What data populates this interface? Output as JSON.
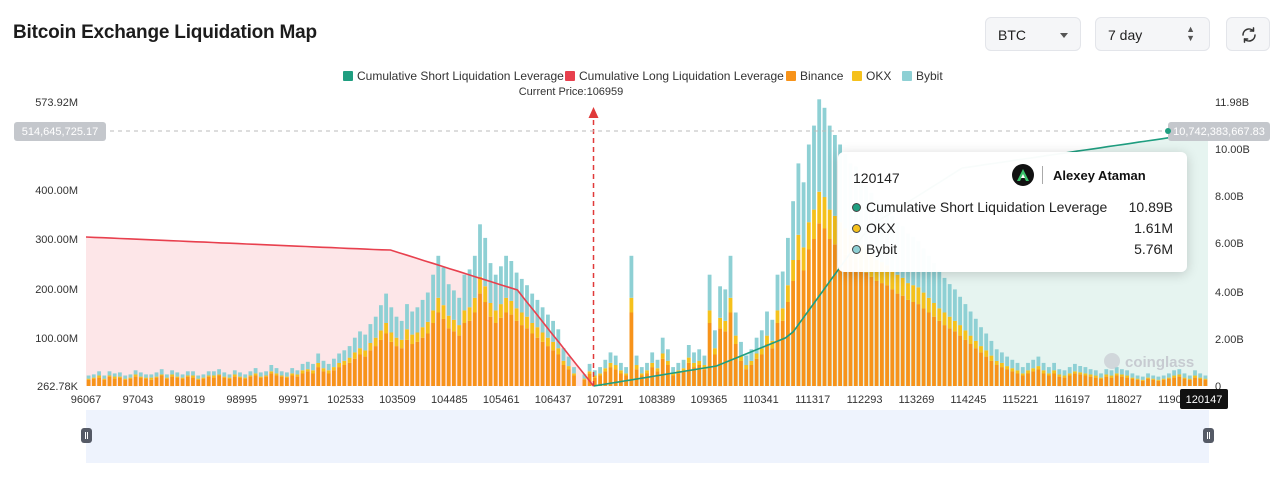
{
  "header": {
    "title": "Bitcoin Exchange Liquidation Map"
  },
  "controls": {
    "coin_select": {
      "value": "BTC"
    },
    "range_select": {
      "value": "7 day"
    },
    "refresh_icon": "refresh-icon"
  },
  "colors": {
    "short_cumulative": "#1f9e80",
    "long_cumulative": "#e8404e",
    "binance": "#f7931a",
    "okx": "#f5c11c",
    "bybit": "#8ed0d4",
    "long_area": "#fde3e6",
    "short_area": "#e3f3ee"
  },
  "chart_data": {
    "type": "bar",
    "legend": [
      "Cumulative Short Liquidation Leverage",
      "Cumulative Long Liquidation Leverage",
      "Binance",
      "OKX",
      "Bybit"
    ],
    "legend_position": "top-center",
    "current_price_label": "Current Price:106959",
    "current_price": 106959,
    "x_ticks": [
      "96067",
      "97043",
      "98019",
      "98995",
      "99971",
      "102533",
      "103509",
      "104485",
      "105461",
      "106437",
      "107291",
      "108389",
      "109365",
      "110341",
      "111317",
      "112293",
      "113269",
      "114245",
      "115221",
      "116197",
      "118027",
      "119003",
      "120147"
    ],
    "x_range": [
      96067,
      120147
    ],
    "left_axis": {
      "ticks": [
        "573.92M",
        "400.00M",
        "300.00M",
        "200.00M",
        "100.00M",
        "262.78K"
      ],
      "range": [
        262780,
        573920000
      ]
    },
    "right_axis": {
      "ticks": [
        "11.98B",
        "10.00B",
        "8.00B",
        "6.00B",
        "4.00B",
        "2.00B",
        "0"
      ],
      "range": [
        0,
        11980000000
      ]
    },
    "hover": {
      "left_value_label": "514,645,725.17",
      "left_value": 514645725.17,
      "right_value_label": "10,742,383,667.83",
      "right_value": 10742383667.83,
      "x_label": "120147"
    },
    "series": [
      {
        "name": "Binance",
        "values": [
          6,
          7,
          8,
          6,
          9,
          7,
          8,
          6,
          7,
          9,
          8,
          7,
          6,
          8,
          10,
          7,
          9,
          8,
          7,
          9,
          8,
          6,
          7,
          9,
          8,
          10,
          8,
          7,
          9,
          8,
          7,
          9,
          10,
          8,
          9,
          12,
          10,
          9,
          8,
          10,
          9,
          12,
          14,
          12,
          18,
          14,
          12,
          15,
          18,
          20,
          22,
          26,
          30,
          28,
          34,
          38,
          44,
          50,
          42,
          38,
          36,
          44,
          40,
          42,
          46,
          50,
          60,
          70,
          64,
          55,
          52,
          48,
          60,
          62,
          70,
          88,
          80,
          66,
          60,
          65,
          70,
          68,
          62,
          58,
          55,
          50,
          46,
          42,
          38,
          34,
          30,
          20,
          16,
          10,
          0,
          6,
          12,
          8,
          10,
          14,
          18,
          16,
          12,
          10,
          70,
          16,
          10,
          12,
          18,
          14,
          26,
          20,
          10,
          12,
          14,
          22,
          18,
          20,
          16,
          60,
          30,
          55,
          52,
          70,
          40,
          24,
          16,
          20,
          26,
          30,
          40,
          36,
          60,
          62,
          80,
          100,
          120,
          110,
          130,
          140,
          155,
          150,
          140,
          135,
          130,
          125,
          120,
          118,
          112,
          108,
          104,
          100,
          98,
          96,
          92,
          88,
          86,
          82,
          80,
          78,
          74,
          70,
          66,
          62,
          58,
          55,
          52,
          48,
          44,
          40,
          36,
          32,
          28,
          24,
          20,
          18,
          16,
          14,
          12,
          10,
          12,
          14,
          16,
          12,
          10,
          12,
          9,
          8,
          10,
          12,
          11,
          10,
          9,
          8,
          7,
          9,
          8,
          10,
          9,
          8,
          7,
          6,
          5,
          7,
          6,
          5,
          6,
          7,
          8,
          9,
          7,
          6,
          8,
          7,
          6
        ]
      },
      {
        "name": "OKX",
        "values": [
          1,
          1,
          2,
          1,
          1,
          2,
          1,
          1,
          1,
          2,
          1,
          1,
          2,
          1,
          1,
          1,
          2,
          1,
          1,
          1,
          2,
          1,
          1,
          1,
          2,
          1,
          1,
          1,
          2,
          1,
          1,
          1,
          2,
          1,
          1,
          2,
          2,
          1,
          1,
          2,
          2,
          3,
          2,
          3,
          4,
          3,
          3,
          3,
          4,
          4,
          5,
          6,
          6,
          6,
          7,
          8,
          9,
          10,
          9,
          8,
          8,
          10,
          9,
          9,
          10,
          11,
          12,
          14,
          13,
          12,
          11,
          10,
          12,
          13,
          14,
          16,
          15,
          13,
          12,
          13,
          14,
          13,
          12,
          12,
          11,
          10,
          10,
          9,
          8,
          8,
          6,
          4,
          3,
          2,
          0,
          1,
          2,
          2,
          2,
          3,
          4,
          4,
          3,
          2,
          14,
          4,
          2,
          3,
          4,
          3,
          5,
          4,
          2,
          3,
          3,
          5,
          4,
          4,
          4,
          12,
          6,
          10,
          10,
          14,
          8,
          5,
          4,
          4,
          5,
          6,
          8,
          7,
          12,
          12,
          16,
          20,
          24,
          22,
          26,
          28,
          30,
          30,
          28,
          27,
          26,
          25,
          24,
          24,
          22,
          22,
          21,
          20,
          20,
          19,
          18,
          18,
          17,
          16,
          16,
          16,
          15,
          14,
          13,
          12,
          12,
          11,
          10,
          10,
          9,
          8,
          7,
          6,
          6,
          5,
          4,
          4,
          3,
          3,
          3,
          2,
          3,
          3,
          3,
          3,
          2,
          3,
          2,
          2,
          2,
          2,
          2,
          2,
          2,
          2,
          1,
          2,
          2,
          2,
          2,
          2,
          1,
          1,
          1,
          1,
          1,
          1,
          1,
          1,
          2,
          2,
          1,
          1,
          2,
          1,
          1
        ]
      },
      {
        "name": "Bybit",
        "values": [
          3,
          3,
          4,
          3,
          4,
          3,
          4,
          3,
          3,
          4,
          4,
          3,
          3,
          4,
          5,
          3,
          4,
          4,
          3,
          4,
          4,
          3,
          3,
          4,
          4,
          5,
          4,
          3,
          4,
          4,
          3,
          4,
          5,
          4,
          4,
          6,
          5,
          4,
          4,
          5,
          4,
          6,
          7,
          6,
          9,
          7,
          6,
          8,
          9,
          10,
          11,
          14,
          16,
          15,
          18,
          20,
          24,
          28,
          24,
          20,
          18,
          24,
          22,
          24,
          26,
          28,
          34,
          40,
          36,
          30,
          28,
          26,
          34,
          36,
          40,
          50,
          46,
          38,
          34,
          36,
          40,
          38,
          34,
          32,
          30,
          28,
          26,
          24,
          22,
          20,
          18,
          12,
          9,
          6,
          0,
          4,
          7,
          5,
          6,
          8,
          10,
          9,
          7,
          6,
          40,
          9,
          6,
          7,
          10,
          8,
          15,
          11,
          6,
          7,
          8,
          12,
          10,
          11,
          9,
          34,
          17,
          30,
          30,
          40,
          22,
          13,
          9,
          11,
          15,
          17,
          23,
          20,
          34,
          35,
          45,
          56,
          68,
          62,
          74,
          80,
          88,
          85,
          80,
          77,
          74,
          71,
          68,
          67,
          64,
          61,
          59,
          57,
          56,
          55,
          52,
          50,
          49,
          47,
          46,
          44,
          42,
          40,
          38,
          36,
          33,
          31,
          30,
          27,
          25,
          23,
          21,
          18,
          16,
          14,
          11,
          10,
          9,
          8,
          7,
          6,
          7,
          8,
          9,
          7,
          6,
          7,
          5,
          5,
          6,
          7,
          6,
          6,
          5,
          5,
          4,
          5,
          5,
          6,
          5,
          5,
          4,
          3,
          3,
          4,
          3,
          3,
          3,
          4,
          5,
          5,
          4,
          3,
          5,
          4,
          3
        ]
      }
    ]
  },
  "tooltip": {
    "title": "120147",
    "brand": "Alexey Ataman",
    "rows": [
      {
        "name": "Cumulative Short Liquidation Leverage",
        "value": "10.89B",
        "color": "#1f9e80"
      },
      {
        "name": "OKX",
        "value": "1.61M",
        "color": "#f5c11c"
      },
      {
        "name": "Bybit",
        "value": "5.76M",
        "color": "#8ed0d4"
      }
    ]
  },
  "watermark": "coinglass"
}
